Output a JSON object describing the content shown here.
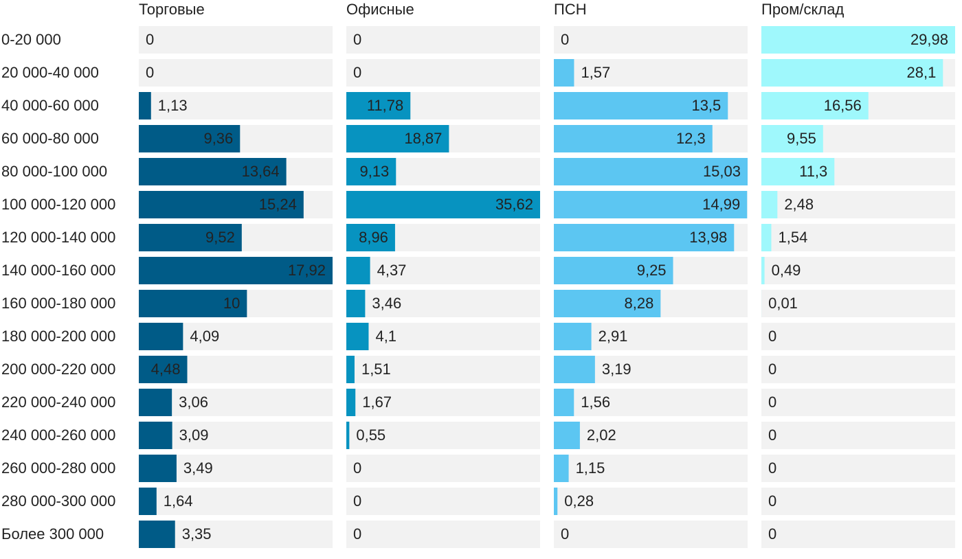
{
  "chart_data": {
    "type": "bar",
    "orientation": "horizontal",
    "categories": [
      "0-20 000",
      "20 000-40 000",
      "40 000-60 000",
      "60 000-80 000",
      "80 000-100 000",
      "100 000-120 000",
      "120 000-140 000",
      "140 000-160 000",
      "160 000-180 000",
      "180 000-200 000",
      "200 000-220 000",
      "220 000-240 000",
      "240 000-260 000",
      "260 000-280 000",
      "280 000-300 000",
      "Более 300 000"
    ],
    "series": [
      {
        "name": "Торговые",
        "color": "#005b87",
        "values": [
          0,
          0,
          1.13,
          9.36,
          13.64,
          15.24,
          9.52,
          17.92,
          10,
          4.09,
          4.48,
          3.06,
          3.09,
          3.49,
          1.64,
          3.35
        ],
        "value_labels": [
          "0",
          "0",
          "1,13",
          "9,36",
          "13,64",
          "15,24",
          "9,52",
          "17,92",
          "10",
          "4,09",
          "4,48",
          "3,06",
          "3,09",
          "3,49",
          "1,64",
          "3,35"
        ]
      },
      {
        "name": "Офисные",
        "color": "#0793c0",
        "values": [
          0,
          0,
          11.78,
          18.87,
          9.13,
          35.62,
          8.96,
          4.37,
          3.46,
          4.1,
          1.51,
          1.67,
          0.55,
          0,
          0,
          0
        ],
        "value_labels": [
          "0",
          "0",
          "11,78",
          "18,87",
          "9,13",
          "35,62",
          "8,96",
          "4,37",
          "3,46",
          "4,1",
          "1,51",
          "1,67",
          "0,55",
          "0",
          "0",
          "0"
        ]
      },
      {
        "name": "ПСН",
        "color": "#5cc6f2",
        "values": [
          0,
          1.57,
          13.5,
          12.3,
          15.03,
          14.99,
          13.98,
          9.25,
          8.28,
          2.91,
          3.19,
          1.56,
          2.02,
          1.15,
          0.28,
          0
        ],
        "value_labels": [
          "0",
          "1,57",
          "13,5",
          "12,3",
          "15,03",
          "14,99",
          "13,98",
          "9,25",
          "8,28",
          "2,91",
          "3,19",
          "1,56",
          "2,02",
          "1,15",
          "0,28",
          "0"
        ]
      },
      {
        "name": "Пром/склад",
        "color": "#9ff8fc",
        "values": [
          29.98,
          28.1,
          16.56,
          9.55,
          11.3,
          2.48,
          1.54,
          0.49,
          0.01,
          0,
          0,
          0,
          0,
          0,
          0,
          0
        ],
        "value_labels": [
          "29,98",
          "28,1",
          "16,56",
          "9,55",
          "11,3",
          "2,48",
          "1,54",
          "0,49",
          "0,01",
          "0",
          "0",
          "0",
          "0",
          "0",
          "0",
          "0"
        ]
      }
    ]
  }
}
